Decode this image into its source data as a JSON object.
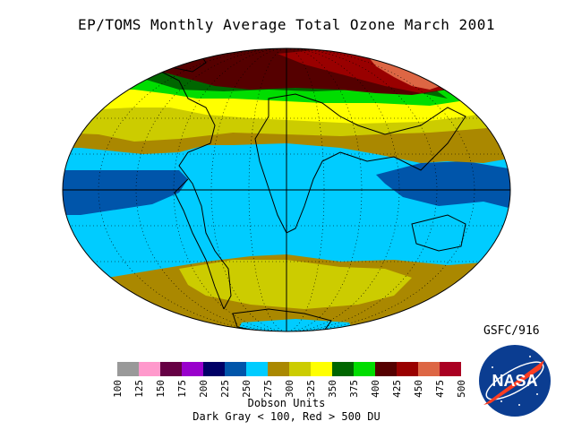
{
  "title": "EP/TOMS Monthly Average Total Ozone March 2001",
  "credit": "GSFC/916",
  "legend": {
    "units_label": "Dobson Units",
    "note": "Dark Gray < 100, Red > 500 DU",
    "ticks": [
      "100",
      "125",
      "150",
      "175",
      "200",
      "225",
      "250",
      "275",
      "300",
      "325",
      "350",
      "375",
      "400",
      "425",
      "450",
      "475",
      "500"
    ],
    "colors": [
      "#999999",
      "#ff99cc",
      "#660044",
      "#9900cc",
      "#000066",
      "#0055aa",
      "#00ccff",
      "#aa8800",
      "#cccc00",
      "#ffff00",
      "#006600",
      "#00dd00",
      "#550000",
      "#990000",
      "#dd6644",
      "#aa0022"
    ]
  },
  "logo": {
    "text": "NASA"
  },
  "map": {
    "projection": "hammer-aitoff",
    "bands": [
      {
        "name": "north-polar-high",
        "color": "#550000"
      },
      {
        "name": "north-high",
        "color": "#00dd00"
      },
      {
        "name": "north-mid",
        "color": "#ffff00"
      },
      {
        "name": "north-low",
        "color": "#cccc00"
      },
      {
        "name": "subtropics",
        "color": "#aa8800"
      },
      {
        "name": "tropics",
        "color": "#00ccff"
      },
      {
        "name": "equator",
        "color": "#0055aa"
      },
      {
        "name": "south-mid",
        "color": "#aa8800"
      },
      {
        "name": "south-low",
        "color": "#cccc00"
      }
    ]
  }
}
